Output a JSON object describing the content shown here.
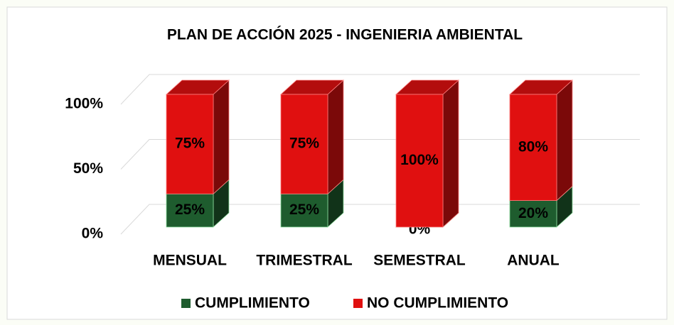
{
  "chart_data": {
    "type": "bar3d_stacked",
    "title": "PLAN DE ACCIÓN 2025 - INGENIERIA AMBIENTAL",
    "categories": [
      "MENSUAL",
      "TRIMESTRAL",
      "SEMESTRAL",
      "ANUAL"
    ],
    "series": [
      {
        "name": "CUMPLIMIENTO",
        "color": "#1e5c2e",
        "values": [
          25,
          25,
          0,
          20
        ],
        "value_labels": [
          "25%",
          "25%",
          "0%",
          "20%"
        ]
      },
      {
        "name": "NO CUMPLIMIENTO",
        "color": "#e01010",
        "values": [
          75,
          75,
          100,
          80
        ],
        "value_labels": [
          "75%",
          "75%",
          "100%",
          "80%"
        ]
      }
    ],
    "ylim": [
      0,
      100
    ],
    "yticks": [
      {
        "value": 0,
        "label": "0%"
      },
      {
        "value": 50,
        "label": "50%"
      },
      {
        "value": 100,
        "label": "100%"
      }
    ],
    "grid": true,
    "legend": "bottom"
  }
}
